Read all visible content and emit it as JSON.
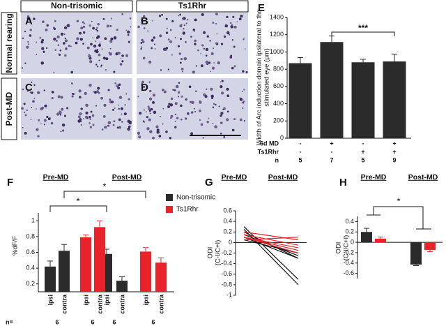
{
  "figure": {
    "panel_labels": [
      "A",
      "B",
      "C",
      "D"
    ],
    "columns": [
      "Non-trisomic",
      "Ts1Rhr"
    ],
    "rows": [
      "Normal rearing",
      "Post-MD"
    ]
  },
  "chart_data": [
    {
      "type": "bar",
      "panel": "E",
      "ylabel": [
        "Width of Arc induction domain ipsilateral to the",
        "stimulated eye (µm)"
      ],
      "ylim": [
        0,
        1400
      ],
      "yticks": [
        0,
        200,
        400,
        600,
        800,
        1000,
        1200,
        1400
      ],
      "series": [
        {
          "color": "#2b2b2b",
          "values": [
            870,
            1115,
            880,
            890
          ],
          "errors": [
            65,
            70,
            35,
            85
          ]
        }
      ],
      "table": [
        {
          "label": "6d MD",
          "cells": [
            "-",
            "+",
            "-",
            "+"
          ]
        },
        {
          "label": "Ts1Rhr",
          "cells": [
            "-",
            "-",
            "+",
            "+"
          ]
        },
        {
          "label": "n",
          "cells": [
            5,
            7,
            5,
            9
          ]
        }
      ],
      "annotations": [
        "***"
      ]
    },
    {
      "type": "bar",
      "panel": "F",
      "ylabel": [
        "%dF/F"
      ],
      "groups": [
        "Pre-MD",
        "Post-MD"
      ],
      "categories": [
        "ipsi",
        "contra",
        "ipsi",
        "contra",
        "ipsi",
        "contra",
        "ipsi",
        "contra"
      ],
      "ylim": [
        0.1,
        1.1
      ],
      "yticks": [
        0.2,
        0.4,
        0.6,
        0.8,
        1
      ],
      "series": [
        {
          "name": "Non-trisomic",
          "color": "#2b2b2b",
          "values": [
            0.42,
            0.62,
            null,
            null,
            0.58,
            0.24,
            null,
            null
          ],
          "errors": [
            0.07,
            0.08,
            null,
            null,
            0.06,
            0.05,
            null,
            null
          ]
        },
        {
          "name": "Ts1Rhr",
          "color": "#e8242a",
          "values": [
            null,
            null,
            0.79,
            0.92,
            null,
            null,
            0.61,
            0.47
          ],
          "errors": [
            null,
            null,
            0.03,
            0.08,
            null,
            null,
            0.05,
            0.06
          ]
        }
      ],
      "n_label": "n=",
      "n": [
        6,
        6,
        6,
        6
      ],
      "annotations": [
        "*",
        "*"
      ]
    },
    {
      "type": "line",
      "panel": "G",
      "ylabel": [
        "ODI",
        "(C-I/C+I)"
      ],
      "categories": [
        "Pre-MD",
        "Post-MD"
      ],
      "ylim": [
        -1,
        0.6
      ],
      "yticks": [
        -1,
        -0.8,
        -0.6,
        -0.4,
        -0.2,
        0,
        0.2,
        0.4,
        0.6
      ],
      "series": [
        {
          "color": "#111111",
          "values": [
            0.3,
            -0.7
          ]
        },
        {
          "color": "#111111",
          "values": [
            0.25,
            -0.8
          ]
        },
        {
          "color": "#111111",
          "values": [
            0.2,
            -0.3
          ]
        },
        {
          "color": "#111111",
          "values": [
            0.15,
            -0.25
          ]
        },
        {
          "color": "#111111",
          "values": [
            0.1,
            -0.3
          ]
        },
        {
          "color": "#111111",
          "values": [
            0.05,
            -0.2
          ]
        },
        {
          "color": "#e8242a",
          "values": [
            0.2,
            0.05
          ]
        },
        {
          "color": "#e8242a",
          "values": [
            0.15,
            -0.05
          ]
        },
        {
          "color": "#e8242a",
          "values": [
            0.1,
            -0.1
          ]
        },
        {
          "color": "#e8242a",
          "values": [
            0.1,
            -0.15
          ]
        },
        {
          "color": "#e8242a",
          "values": [
            0.05,
            0.1
          ]
        },
        {
          "color": "#e8242a",
          "values": [
            0.1,
            -0.2
          ]
        }
      ]
    },
    {
      "type": "bar",
      "panel": "H",
      "ylabel": [
        "ODI",
        "(C-I/C+I)"
      ],
      "categories": [
        "Pre-MD",
        "Post-MD"
      ],
      "ylim": [
        -0.7,
        0.5
      ],
      "yticks": [
        -0.6,
        -0.4,
        -0.2,
        0,
        0.2,
        0.4
      ],
      "series": [
        {
          "color": "#2b2b2b",
          "values": [
            0.2,
            -0.43
          ],
          "errors": [
            0.07,
            0.02
          ]
        },
        {
          "color": "#e8242a",
          "values": [
            0.07,
            -0.15
          ],
          "errors": [
            0.03,
            0.03
          ]
        }
      ],
      "annotations": [
        "*"
      ]
    }
  ]
}
